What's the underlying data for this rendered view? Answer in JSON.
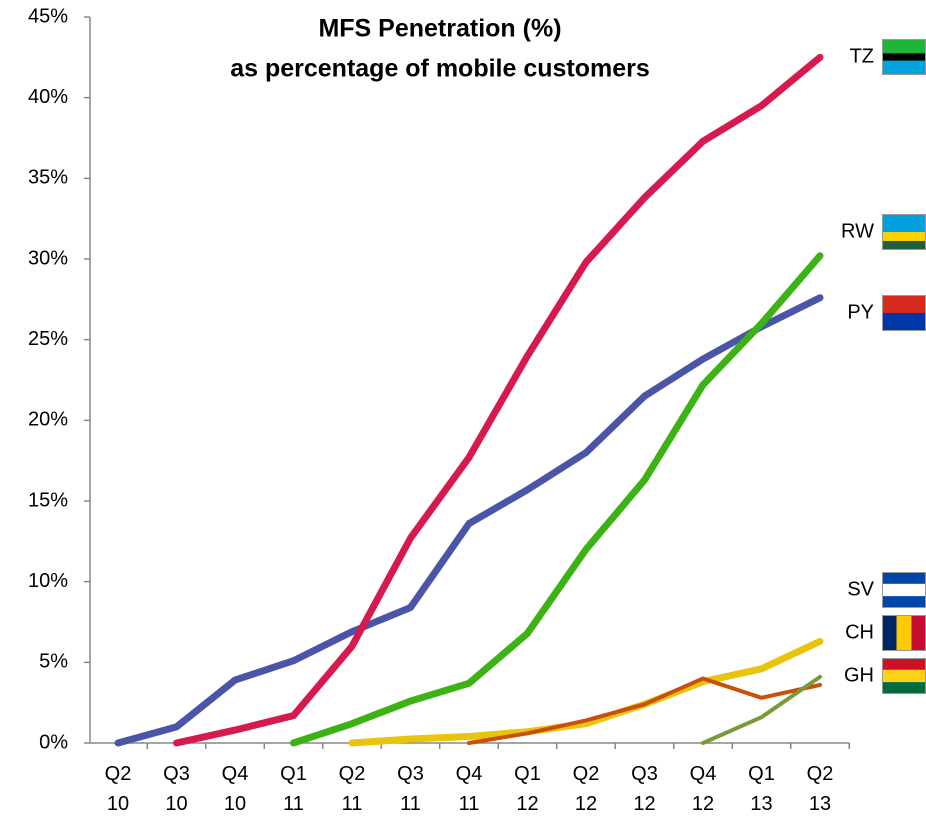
{
  "chart_data": {
    "type": "line",
    "title": "MFS Penetration (%)",
    "subtitle": "as percentage of mobile customers",
    "categories": [
      "Q2 10",
      "Q3 10",
      "Q4 10",
      "Q1 11",
      "Q2 11",
      "Q3 11",
      "Q4 11",
      "Q1 12",
      "Q2 12",
      "Q3 12",
      "Q4 12",
      "Q1 13",
      "Q2 13"
    ],
    "series": [
      {
        "name": "PY",
        "color": "#4a55a8",
        "values": [
          0,
          1.0,
          3.9,
          5.1,
          6.9,
          8.4,
          13.6,
          15.7,
          18.0,
          21.5,
          23.8,
          25.8,
          27.6
        ]
      },
      {
        "name": "TZ",
        "color": "#d61a4e",
        "values": [
          null,
          0,
          0.8,
          1.7,
          6.0,
          12.7,
          17.7,
          24.0,
          29.8,
          33.8,
          37.3,
          39.5,
          42.5
        ]
      },
      {
        "name": "RW",
        "color": "#3cb214",
        "values": [
          null,
          null,
          null,
          0,
          1.2,
          2.6,
          3.7,
          6.8,
          12.0,
          16.3,
          22.2,
          26.0,
          30.2
        ]
      },
      {
        "name": "SV",
        "color": "#e8c40c",
        "values": [
          null,
          null,
          null,
          null,
          0,
          0.25,
          0.4,
          0.7,
          1.2,
          2.4,
          3.8,
          4.6,
          6.3
        ]
      },
      {
        "name": "CH",
        "color": "#c8500a",
        "values": [
          null,
          null,
          null,
          null,
          null,
          null,
          0,
          0.6,
          1.4,
          2.4,
          4.0,
          2.8,
          3.6
        ]
      },
      {
        "name": "GH",
        "color": "#7a9a3a",
        "values": [
          null,
          null,
          null,
          null,
          null,
          null,
          null,
          null,
          null,
          null,
          0,
          1.6,
          4.1
        ]
      }
    ],
    "ylim": [
      0,
      45
    ],
    "yticks": [
      {
        "value": 0,
        "label": "0%"
      },
      {
        "value": 5,
        "label": "5%"
      },
      {
        "value": 10,
        "label": "10%"
      },
      {
        "value": 15,
        "label": "15%"
      },
      {
        "value": 20,
        "label": "20%"
      },
      {
        "value": 25,
        "label": "25%"
      },
      {
        "value": 30,
        "label": "30%"
      },
      {
        "value": 35,
        "label": "35%"
      },
      {
        "value": 40,
        "label": "40%"
      },
      {
        "value": 45,
        "label": "45%"
      }
    ],
    "grid": false
  }
}
